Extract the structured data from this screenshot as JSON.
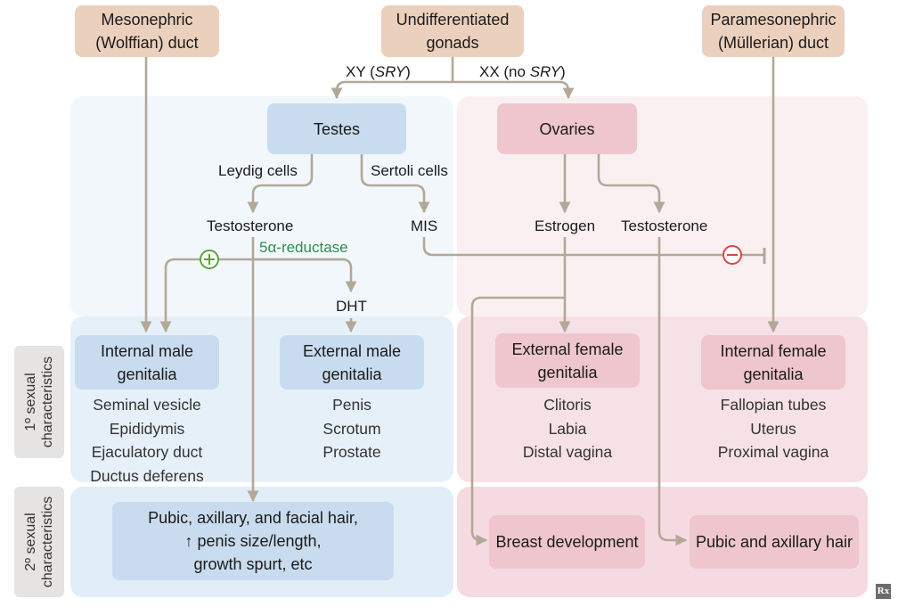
{
  "colors": {
    "arrow": "#b3a898",
    "plus": "#5aa43c",
    "minus": "#d84545",
    "reductase": "#2f8c4f"
  },
  "top": {
    "wolffian": [
      "Mesonephric",
      "(Wolffian) duct"
    ],
    "gonads": [
      "Undifferentiated",
      "gonads"
    ],
    "mullerian": [
      "Paramesonephric",
      "(Müllerian) duct"
    ],
    "xy_label": "XY (SRY)",
    "xx_label": "XX (no SRY)"
  },
  "male": {
    "testes": "Testes",
    "leydig": "Leydig cells",
    "sertoli": "Sertoli cells",
    "testosterone": "Testosterone",
    "mis": "MIS",
    "reductase": "5α-reductase",
    "dht": "DHT",
    "internal_title": [
      "Internal male",
      "genitalia"
    ],
    "internal_items": [
      "Seminal vesicle",
      "Epididymis",
      "Ejaculatory duct",
      "Ductus deferens"
    ],
    "external_title": [
      "External male",
      "genitalia"
    ],
    "external_items": [
      "Penis",
      "Scrotum",
      "Prostate"
    ],
    "secondary": [
      "Pubic, axillary, and facial hair,",
      "↑ penis size/length,",
      "growth spurt, etc"
    ]
  },
  "female": {
    "ovaries": "Ovaries",
    "estrogen": "Estrogen",
    "testosterone": "Testosterone",
    "external_title": [
      "External female",
      "genitalia"
    ],
    "external_items": [
      "Clitoris",
      "Labia",
      "Distal vagina"
    ],
    "internal_title": [
      "Internal female",
      "genitalia"
    ],
    "internal_items": [
      "Fallopian tubes",
      "Uterus",
      "Proximal vagina"
    ],
    "breast": "Breast development",
    "hair": "Pubic and axillary hair"
  },
  "side": {
    "primary": [
      "1º sexual",
      "characteristics"
    ],
    "secondary": [
      "2º sexual",
      "characteristics"
    ]
  },
  "logo": "Rx"
}
